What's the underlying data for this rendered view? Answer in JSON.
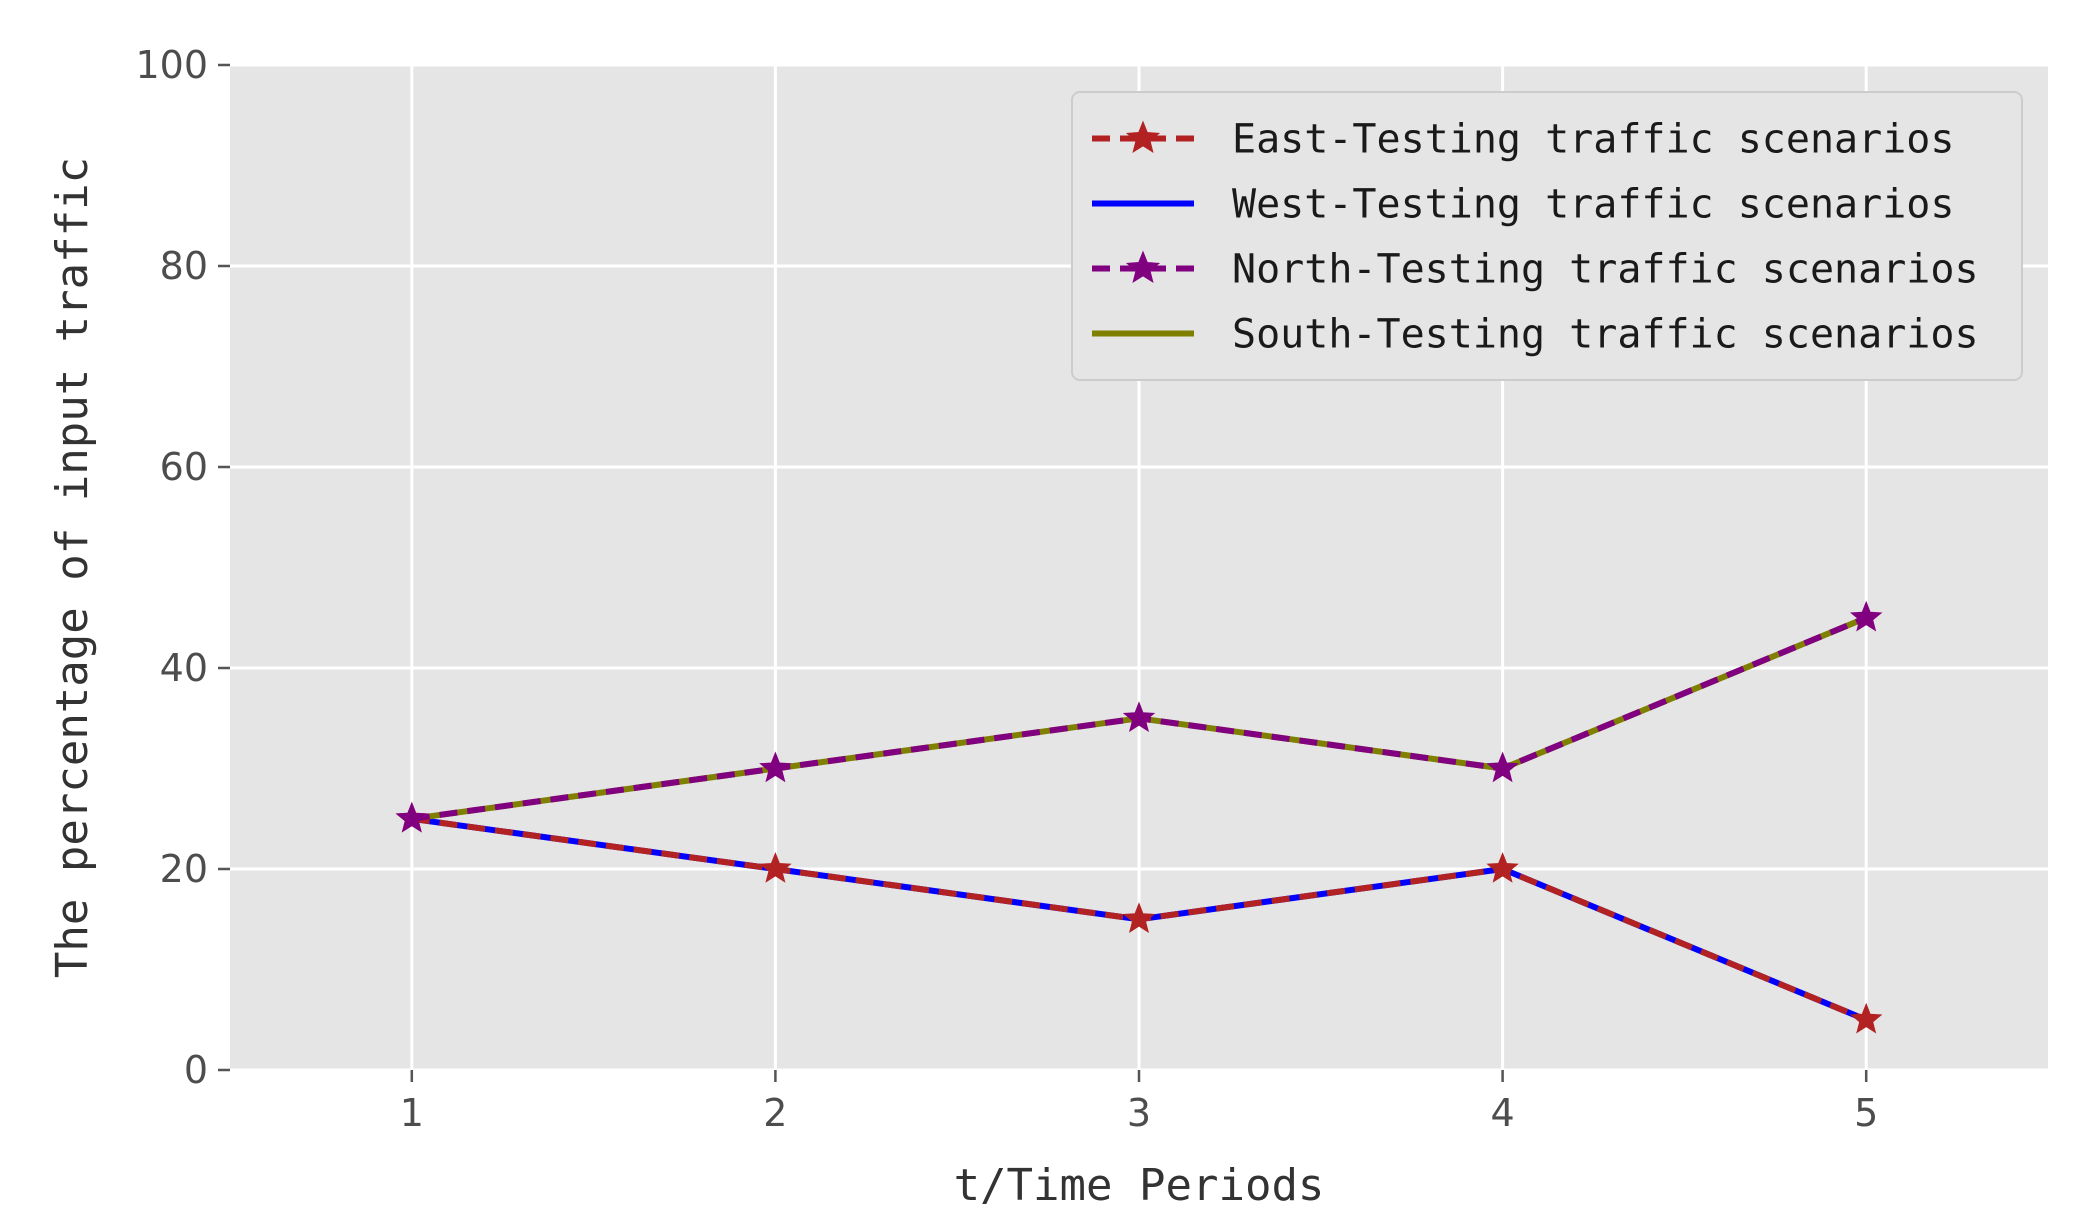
{
  "chart_data": {
    "type": "line",
    "title": "",
    "xlabel": "t/Time Periods",
    "ylabel": "The percentage of input traffic",
    "x": [
      1,
      2,
      3,
      4,
      5
    ],
    "xlim": [
      0.5,
      5.5
    ],
    "ylim": [
      0,
      100
    ],
    "xticks": [
      1,
      2,
      3,
      4,
      5
    ],
    "yticks": [
      0,
      20,
      40,
      60,
      80,
      100
    ],
    "grid": true,
    "legend_position": "top-right",
    "series": [
      {
        "name": "East-Testing traffic scenarios",
        "values": [
          25,
          20,
          15,
          20,
          5
        ],
        "color": "#b22222",
        "line_style": "dashed",
        "marker": "star"
      },
      {
        "name": "West-Testing traffic scenarios",
        "values": [
          25,
          20,
          15,
          20,
          5
        ],
        "color": "#0000ff",
        "line_style": "solid",
        "marker": "none"
      },
      {
        "name": "North-Testing traffic scenarios",
        "values": [
          25,
          30,
          35,
          30,
          45
        ],
        "color": "#800080",
        "line_style": "dashed",
        "marker": "star"
      },
      {
        "name": "South-Testing traffic scenarios",
        "values": [
          25,
          30,
          35,
          30,
          45
        ],
        "color": "#808000",
        "line_style": "solid",
        "marker": "none"
      }
    ]
  }
}
